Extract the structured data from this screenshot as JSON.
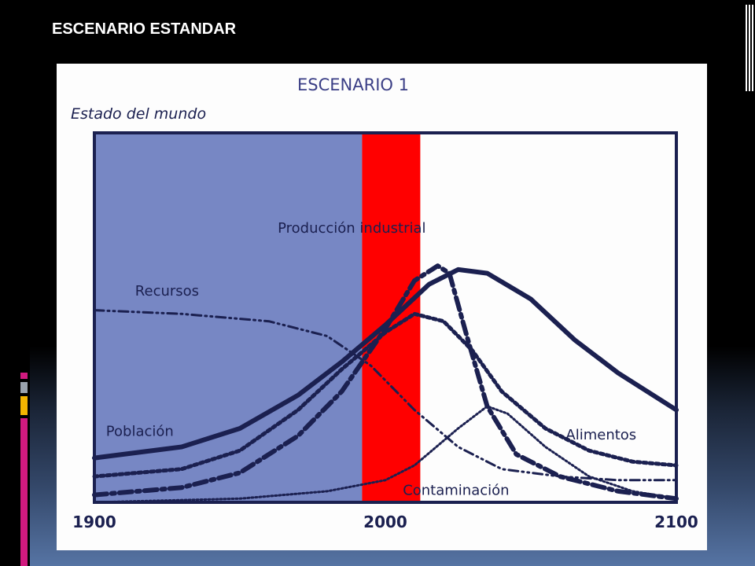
{
  "slide": {
    "title": "ESCENARIO ESTANDAR"
  },
  "colors": {
    "background": "#000000",
    "highlight_past": "#7787c4",
    "highlight_present": "#ff0000",
    "line_color": "#1b2050",
    "deco_pink": "#d11a7f",
    "deco_gray": "#9aa3ad",
    "deco_yellow": "#f3b400"
  },
  "chart_data": {
    "type": "line",
    "title": "ESCENARIO 1",
    "ylabel": "Estado del mundo",
    "xlim": [
      1900,
      2100
    ],
    "ylim": [
      0,
      1
    ],
    "x_ticks": [
      "1900",
      "2000",
      "2100"
    ],
    "highlighted_ranges": [
      {
        "from": 1900,
        "to": 1992,
        "color": "#7787c4"
      },
      {
        "from": 1992,
        "to": 2012,
        "color": "#ff0000"
      }
    ],
    "series": [
      {
        "name": "Recursos",
        "style": "dash-dot-dot",
        "width": 3,
        "label_pos": [
          1914,
          0.56
        ],
        "points": [
          [
            1900,
            0.52
          ],
          [
            1930,
            0.51
          ],
          [
            1960,
            0.49
          ],
          [
            1980,
            0.45
          ],
          [
            1995,
            0.37
          ],
          [
            2010,
            0.25
          ],
          [
            2025,
            0.15
          ],
          [
            2040,
            0.09
          ],
          [
            2060,
            0.07
          ],
          [
            2080,
            0.06
          ],
          [
            2100,
            0.06
          ]
        ]
      },
      {
        "name": "Población",
        "style": "solid",
        "width": 6,
        "label_pos": [
          1904,
          0.18
        ],
        "points": [
          [
            1900,
            0.12
          ],
          [
            1930,
            0.15
          ],
          [
            1950,
            0.2
          ],
          [
            1970,
            0.29
          ],
          [
            1985,
            0.38
          ],
          [
            2000,
            0.48
          ],
          [
            2015,
            0.59
          ],
          [
            2025,
            0.63
          ],
          [
            2035,
            0.62
          ],
          [
            2050,
            0.55
          ],
          [
            2065,
            0.44
          ],
          [
            2080,
            0.35
          ],
          [
            2100,
            0.25
          ]
        ]
      },
      {
        "name": "Producción industrial",
        "style": "dash-dot",
        "width": 6,
        "label_pos": [
          1963,
          0.73
        ],
        "points": [
          [
            1900,
            0.02
          ],
          [
            1930,
            0.04
          ],
          [
            1950,
            0.08
          ],
          [
            1970,
            0.18
          ],
          [
            1985,
            0.3
          ],
          [
            2000,
            0.47
          ],
          [
            2010,
            0.6
          ],
          [
            2018,
            0.64
          ],
          [
            2022,
            0.62
          ],
          [
            2028,
            0.45
          ],
          [
            2035,
            0.26
          ],
          [
            2045,
            0.13
          ],
          [
            2060,
            0.07
          ],
          [
            2080,
            0.03
          ],
          [
            2100,
            0.01
          ]
        ]
      },
      {
        "name": "Alimentos",
        "style": "dotted",
        "width": 5,
        "label_pos": [
          2062,
          0.17
        ],
        "points": [
          [
            1900,
            0.07
          ],
          [
            1930,
            0.09
          ],
          [
            1950,
            0.14
          ],
          [
            1970,
            0.25
          ],
          [
            1985,
            0.36
          ],
          [
            2000,
            0.46
          ],
          [
            2010,
            0.51
          ],
          [
            2020,
            0.49
          ],
          [
            2030,
            0.41
          ],
          [
            2040,
            0.3
          ],
          [
            2055,
            0.2
          ],
          [
            2070,
            0.14
          ],
          [
            2085,
            0.11
          ],
          [
            2100,
            0.1
          ]
        ]
      },
      {
        "name": "Contaminación",
        "style": "dotted-fine",
        "width": 3,
        "label_pos": [
          2006,
          0.02
        ],
        "points": [
          [
            1900,
            0.0
          ],
          [
            1950,
            0.01
          ],
          [
            1980,
            0.03
          ],
          [
            2000,
            0.06
          ],
          [
            2010,
            0.1
          ],
          [
            2025,
            0.2
          ],
          [
            2035,
            0.26
          ],
          [
            2042,
            0.24
          ],
          [
            2055,
            0.15
          ],
          [
            2070,
            0.07
          ],
          [
            2085,
            0.03
          ],
          [
            2100,
            0.01
          ]
        ]
      }
    ]
  }
}
